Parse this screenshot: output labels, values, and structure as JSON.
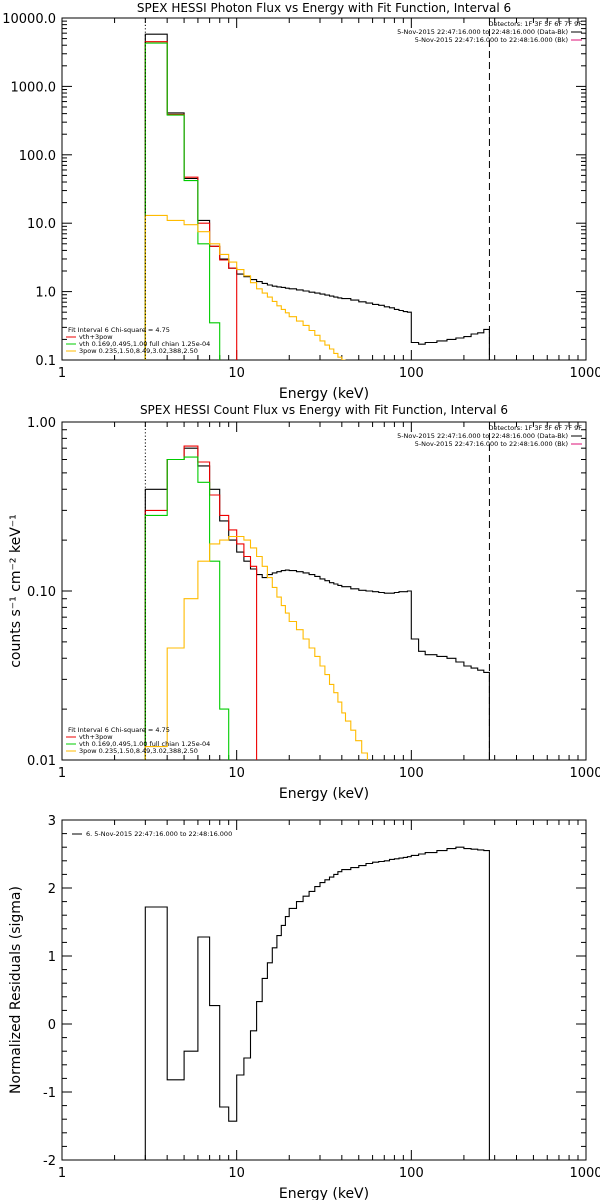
{
  "chart_data": [
    {
      "type": "line",
      "title": "SPEX HESSI Photon Flux vs Energy with Fit Function, Interval 6",
      "xlabel": "Energy (keV)",
      "ylabel": "",
      "xscale": "log",
      "yscale": "log",
      "xlim": [
        1,
        1000
      ],
      "ylim": [
        0.1,
        10000
      ],
      "xticks": [
        "1",
        "10",
        "100",
        "1000"
      ],
      "yticks": [
        {
          "value": 0.1,
          "label": "0.1"
        },
        {
          "value": 1,
          "label": "1.0"
        },
        {
          "value": 10,
          "label": "10.0"
        },
        {
          "value": 100,
          "label": "100.0"
        },
        {
          "value": 1000,
          "label": "1000.0"
        },
        {
          "value": 10000,
          "label": "10000.0"
        }
      ],
      "legend_top_right": [
        {
          "label": "Detectors: 1F 3F 5F 6F 7F 9F",
          "color": ""
        },
        {
          "label": "5-Nov-2015 22:47:16.000 to 22:48:16.000 (Data-Bk)",
          "color": "#000000"
        },
        {
          "label": "5-Nov-2015 22:47:16.000 to 22:48:16.000 (Bk)",
          "color": "#dd1177"
        }
      ],
      "legend_bottom_left": [
        {
          "label": "Fit Interval 6   Chi-square = 4.75",
          "color": ""
        },
        {
          "label": "vth+3pow",
          "color": "#ee0000"
        },
        {
          "label": "vth 0.169,0.495,1.00  full chian 1.25e-04",
          "color": "#00cc00"
        },
        {
          "label": "3pow 0.235,1.50,8.49,3.02,388,2.50",
          "color": "#ffbb00"
        }
      ],
      "vlines": [
        {
          "x": 3,
          "style": "dotted",
          "color": "#000000"
        },
        {
          "x": 280,
          "style": "dashed",
          "color": "#000000"
        }
      ],
      "series": [
        {
          "name": "Data-Bk",
          "color": "#000000",
          "edges": [
            3,
            4,
            5,
            6,
            7,
            8,
            9,
            10,
            11,
            12,
            13,
            14,
            15,
            16,
            17,
            18,
            19,
            20,
            22,
            24,
            26,
            28,
            30,
            32,
            34,
            36,
            38,
            40,
            45,
            50,
            55,
            60,
            65,
            70,
            75,
            80,
            85,
            90,
            95,
            100,
            110,
            120,
            140,
            160,
            180,
            200,
            220,
            240,
            260,
            280
          ],
          "values": [
            5800,
            410,
            45,
            11,
            4.6,
            3.0,
            2.2,
            1.8,
            1.65,
            1.5,
            1.4,
            1.32,
            1.25,
            1.2,
            1.17,
            1.15,
            1.12,
            1.1,
            1.06,
            1.02,
            0.98,
            0.95,
            0.92,
            0.89,
            0.86,
            0.83,
            0.81,
            0.79,
            0.75,
            0.71,
            0.68,
            0.65,
            0.63,
            0.6,
            0.58,
            0.55,
            0.53,
            0.51,
            0.5,
            0.18,
            0.17,
            0.18,
            0.19,
            0.2,
            0.21,
            0.22,
            0.24,
            0.25,
            0.28
          ]
        },
        {
          "name": "vth+3pow",
          "color": "#ee0000",
          "edges": [
            3,
            4,
            5,
            6,
            7,
            8,
            9,
            10
          ],
          "values": [
            4500,
            390,
            47,
            10,
            4.6,
            2.9,
            2.2
          ]
        },
        {
          "name": "vth",
          "color": "#00cc00",
          "edges": [
            3,
            4,
            5,
            6,
            7,
            8
          ],
          "values": [
            4300,
            380,
            42,
            5.0,
            0.35
          ]
        },
        {
          "name": "3pow",
          "color": "#ffbb00",
          "edges": [
            3,
            4,
            5,
            6,
            7,
            8,
            9,
            10,
            11,
            12,
            13,
            14,
            15,
            16,
            17,
            18,
            19,
            20,
            22,
            24,
            26,
            28,
            30,
            32,
            34,
            36,
            38,
            40,
            42
          ],
          "values": [
            13,
            11,
            9.5,
            7.5,
            5.0,
            3.5,
            2.7,
            2.1,
            1.7,
            1.35,
            1.1,
            0.95,
            0.83,
            0.72,
            0.62,
            0.55,
            0.49,
            0.43,
            0.37,
            0.32,
            0.27,
            0.23,
            0.19,
            0.165,
            0.145,
            0.125,
            0.11,
            0.1
          ]
        }
      ]
    },
    {
      "type": "line",
      "title": "SPEX HESSI Count Flux vs Energy with Fit Function, Interval 6",
      "xlabel": "Energy (keV)",
      "ylabel": "counts s⁻¹ cm⁻² keV⁻¹",
      "xscale": "log",
      "yscale": "log",
      "xlim": [
        1,
        1000
      ],
      "ylim": [
        0.01,
        1.0
      ],
      "xticks": [
        "1",
        "10",
        "100",
        "1000"
      ],
      "yticks": [
        {
          "value": 0.01,
          "label": "0.01"
        },
        {
          "value": 0.1,
          "label": "0.10"
        },
        {
          "value": 1,
          "label": "1.00"
        }
      ],
      "legend_top_right": [
        {
          "label": "Detectors: 1F 3F 5F 6F 7F 9F",
          "color": ""
        },
        {
          "label": "5-Nov-2015 22:47:16.000 to 22:48:16.000 (Data-Bk)",
          "color": "#000000"
        },
        {
          "label": "5-Nov-2015 22:47:16.000 to 22:48:16.000 (Bk)",
          "color": "#dd1177"
        }
      ],
      "legend_bottom_left": [
        {
          "label": "Fit Interval 6   Chi-square = 4.75",
          "color": ""
        },
        {
          "label": "vth+3pow",
          "color": "#ee0000"
        },
        {
          "label": "vth 0.169,0.495,1.00  full chian 1.25e-04",
          "color": "#00cc00"
        },
        {
          "label": "3pow 0.235,1.50,8.49,3.02,388,2.50",
          "color": "#ffbb00"
        }
      ],
      "vlines": [
        {
          "x": 3,
          "style": "dotted",
          "color": "#000000"
        },
        {
          "x": 280,
          "style": "dashed",
          "color": "#000000"
        }
      ],
      "series": [
        {
          "name": "Data-Bk",
          "color": "#000000",
          "edges": [
            3,
            4,
            5,
            6,
            7,
            8,
            9,
            10,
            11,
            12,
            13,
            14,
            15,
            16,
            17,
            18,
            19,
            20,
            22,
            24,
            26,
            28,
            30,
            32,
            34,
            36,
            38,
            40,
            45,
            50,
            55,
            60,
            65,
            70,
            75,
            80,
            85,
            90,
            95,
            100,
            110,
            120,
            140,
            160,
            180,
            200,
            220,
            240,
            260,
            280
          ],
          "values": [
            0.4,
            0.6,
            0.7,
            0.55,
            0.4,
            0.26,
            0.2,
            0.17,
            0.15,
            0.135,
            0.125,
            0.12,
            0.125,
            0.128,
            0.13,
            0.132,
            0.133,
            0.132,
            0.13,
            0.128,
            0.125,
            0.122,
            0.118,
            0.115,
            0.112,
            0.11,
            0.108,
            0.106,
            0.103,
            0.101,
            0.1,
            0.099,
            0.098,
            0.097,
            0.097,
            0.098,
            0.099,
            0.099,
            0.1,
            0.052,
            0.044,
            0.042,
            0.041,
            0.04,
            0.038,
            0.036,
            0.035,
            0.034,
            0.033
          ]
        },
        {
          "name": "vth+3pow",
          "color": "#ee0000",
          "edges": [
            3,
            4,
            5,
            6,
            7,
            8,
            9,
            10,
            11,
            12,
            13
          ],
          "values": [
            0.3,
            0.6,
            0.72,
            0.58,
            0.37,
            0.28,
            0.23,
            0.19,
            0.16,
            0.14
          ]
        },
        {
          "name": "vth",
          "color": "#00cc00",
          "edges": [
            3,
            4,
            5,
            6,
            7,
            8,
            9
          ],
          "values": [
            0.28,
            0.6,
            0.62,
            0.44,
            0.15,
            0.02
          ]
        },
        {
          "name": "3pow",
          "color": "#ffbb00",
          "edges": [
            3,
            4,
            5,
            6,
            7,
            8,
            9,
            10,
            11,
            12,
            13,
            14,
            15,
            16,
            17,
            18,
            19,
            20,
            22,
            24,
            26,
            28,
            30,
            32,
            34,
            36,
            38,
            40,
            42,
            45,
            48,
            52,
            56
          ],
          "values": [
            0.012,
            0.046,
            0.09,
            0.15,
            0.19,
            0.2,
            0.21,
            0.21,
            0.2,
            0.18,
            0.16,
            0.14,
            0.12,
            0.105,
            0.092,
            0.082,
            0.074,
            0.066,
            0.059,
            0.052,
            0.046,
            0.041,
            0.036,
            0.032,
            0.028,
            0.025,
            0.022,
            0.019,
            0.017,
            0.015,
            0.013,
            0.011
          ]
        }
      ]
    },
    {
      "type": "line",
      "title": "",
      "xlabel": "Energy (keV)",
      "ylabel": "Normalized Residuals (sigma)",
      "xscale": "log",
      "yscale": "linear",
      "xlim": [
        1,
        1000
      ],
      "ylim": [
        -2,
        3
      ],
      "xticks": [
        "1",
        "10",
        "100",
        "1000"
      ],
      "yticks": [
        {
          "value": -2,
          "label": "-2"
        },
        {
          "value": -1,
          "label": "-1"
        },
        {
          "value": 0,
          "label": "0"
        },
        {
          "value": 1,
          "label": "1"
        },
        {
          "value": 2,
          "label": "2"
        },
        {
          "value": 3,
          "label": "3"
        }
      ],
      "legend_top_left": [
        {
          "label": "6.  5-Nov-2015 22:47:16.000 to 22:48:16.000",
          "color": "#000000"
        }
      ],
      "series": [
        {
          "name": "6.  5-Nov-2015 22:47:16.000 to 22:48:16.000",
          "color": "#000000",
          "edges": [
            3,
            4,
            5,
            6,
            7,
            8,
            9,
            10,
            11,
            12,
            13,
            14,
            15,
            16,
            17,
            18,
            19,
            20,
            22,
            24,
            26,
            28,
            30,
            32,
            34,
            36,
            38,
            40,
            45,
            50,
            55,
            60,
            65,
            70,
            75,
            80,
            85,
            90,
            95,
            100,
            110,
            120,
            140,
            160,
            180,
            200,
            220,
            240,
            260,
            280
          ],
          "values": [
            1.72,
            -0.82,
            -0.4,
            1.28,
            0.27,
            -1.22,
            -1.43,
            -0.75,
            -0.5,
            -0.1,
            0.33,
            0.67,
            0.9,
            1.12,
            1.3,
            1.45,
            1.58,
            1.7,
            1.8,
            1.88,
            1.95,
            2.02,
            2.08,
            2.12,
            2.16,
            2.2,
            2.24,
            2.27,
            2.3,
            2.33,
            2.36,
            2.38,
            2.39,
            2.4,
            2.42,
            2.43,
            2.44,
            2.45,
            2.46,
            2.48,
            2.5,
            2.52,
            2.55,
            2.58,
            2.6,
            2.58,
            2.57,
            2.56,
            2.55
          ]
        }
      ]
    }
  ]
}
